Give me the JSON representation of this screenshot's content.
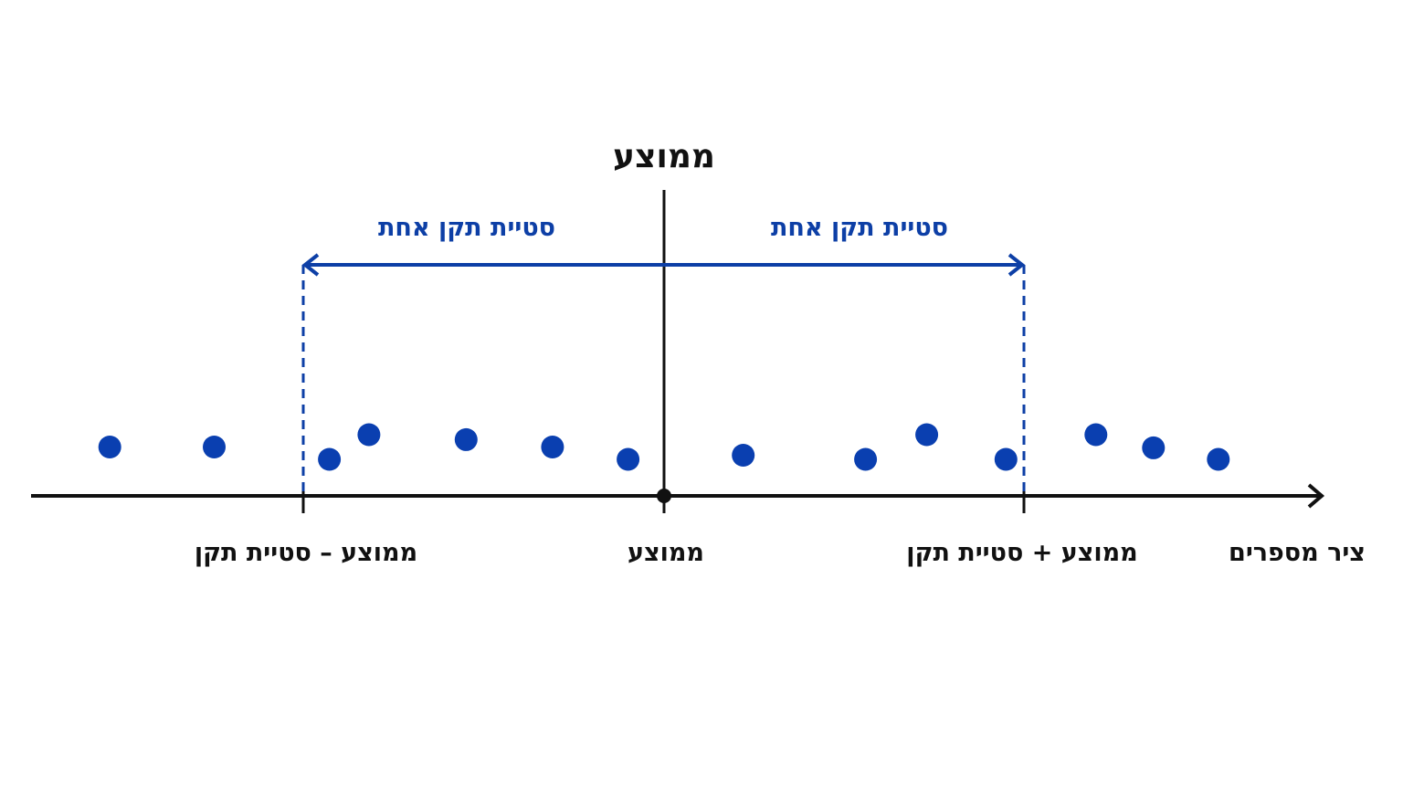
{
  "title": "ממוצע",
  "span_labels": {
    "left": "סטיית תקן אחת",
    "right": "סטיית תקן אחת"
  },
  "axis_labels": {
    "minus_sd": "ממוצע – סטיית תקן",
    "mean": "ממוצע",
    "plus_sd": "ממוצע + סטיית תקן",
    "axis_name": "ציר מספרים"
  },
  "colors": {
    "accent": "#0d3fa6",
    "point": "#0a3fb0",
    "axis": "#111111",
    "text": "#111111"
  },
  "scale": {
    "mean": 0,
    "minus_sd": -1,
    "plus_sd": 1
  },
  "points": [
    {
      "x": -1.54,
      "y": 0.15
    },
    {
      "x": -1.25,
      "y": 0.15
    },
    {
      "x": -0.93,
      "y": 0.0
    },
    {
      "x": -0.82,
      "y": 0.3
    },
    {
      "x": -0.55,
      "y": 0.24
    },
    {
      "x": -0.31,
      "y": 0.15
    },
    {
      "x": -0.1,
      "y": 0.0
    },
    {
      "x": 0.22,
      "y": 0.05
    },
    {
      "x": 0.56,
      "y": 0.0
    },
    {
      "x": 0.73,
      "y": 0.3
    },
    {
      "x": 0.95,
      "y": 0.0
    },
    {
      "x": 1.2,
      "y": 0.3
    },
    {
      "x": 1.36,
      "y": 0.14
    },
    {
      "x": 1.54,
      "y": 0.0
    }
  ]
}
